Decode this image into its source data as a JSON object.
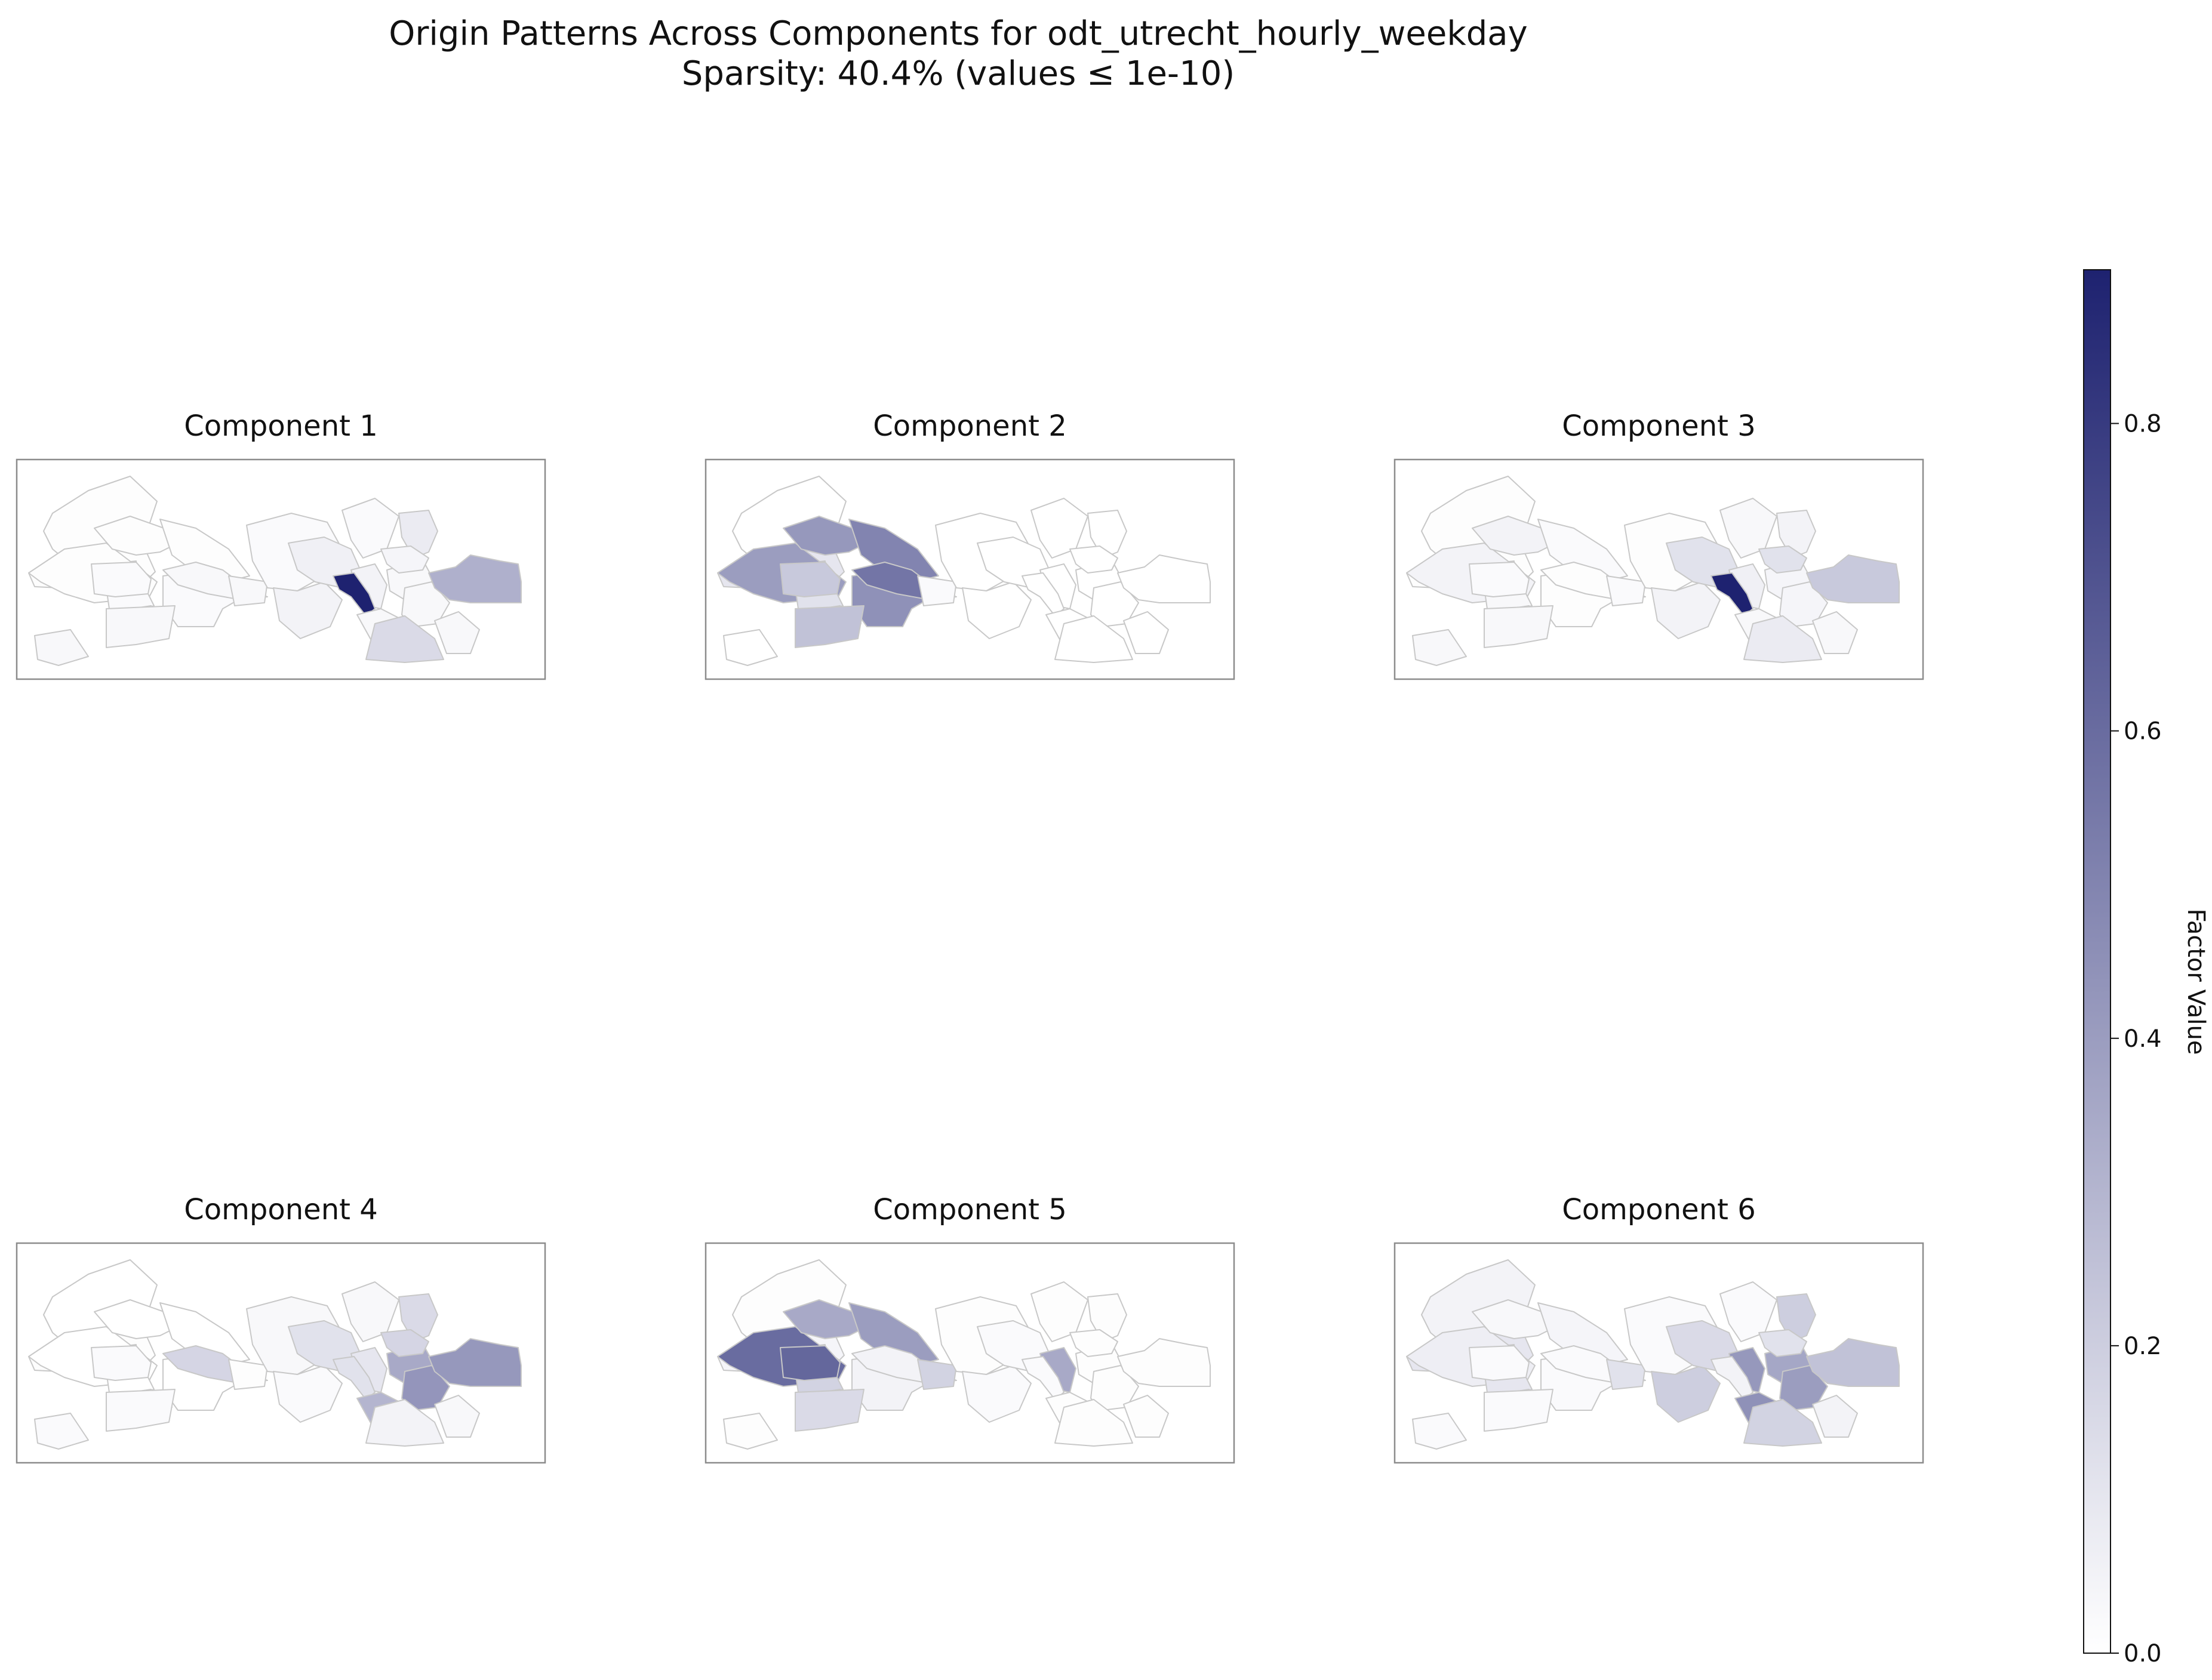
{
  "figure": {
    "title_line1": "Origin Patterns Across Components for odt_utrecht_hourly_weekday",
    "title_line2": "Sparsity: 40.4% (values ≤ 1e-10)"
  },
  "colormap": {
    "low": "#ffffff",
    "high": "#1e2270"
  },
  "colorbar": {
    "label": "Factor Value",
    "range": [
      0,
      0.9
    ],
    "ticks": [
      {
        "value": 0.0,
        "label": "0.0"
      },
      {
        "value": 0.2,
        "label": "0.2"
      },
      {
        "value": 0.4,
        "label": "0.4"
      },
      {
        "value": 0.6,
        "label": "0.6"
      },
      {
        "value": 0.8,
        "label": "0.8"
      }
    ]
  },
  "components": [
    {
      "title": "Component 1",
      "values": {
        "D01": 0.01,
        "D02": 0.01,
        "D03": 0.01,
        "D04": 0.01,
        "D05": 0.01,
        "D06": 0.01,
        "D07": 0.02,
        "D08": 0.02,
        "D09": 0.02,
        "D10": 0.02,
        "D11": 0.03,
        "D12": 0.03,
        "D13": 0.03,
        "D14": 0.02,
        "D15": 0.05,
        "D16": 0.06,
        "D17": 0.02,
        "D18": 0.05,
        "D19": 0.9,
        "D20": 0.03,
        "D21": 0.03,
        "D22": 0.08,
        "D23": 0.04,
        "D24": 0.03,
        "D25": 0.32,
        "D26": 0.15,
        "D27": 0.03,
        "D28": 0.03
      }
    },
    {
      "title": "Component 2",
      "values": {
        "D01": 0.0,
        "D02": 0.1,
        "D03": 0.03,
        "D04": 0.4,
        "D05": 0.42,
        "D06": 0.5,
        "D07": 0.12,
        "D08": 0.45,
        "D09": 0.0,
        "D10": 0.22,
        "D11": 0.25,
        "D12": 0.56,
        "D13": 0.02,
        "D14": 0.0,
        "D15": 0.0,
        "D16": 0.0,
        "D17": 0.0,
        "D18": 0.0,
        "D19": 0.0,
        "D20": 0.0,
        "D21": 0.0,
        "D22": 0.0,
        "D23": 0.0,
        "D24": 0.0,
        "D25": 0.0,
        "D26": 0.0,
        "D27": 0.0,
        "D28": 0.0
      }
    },
    {
      "title": "Component 3",
      "values": {
        "D01": 0.01,
        "D02": 0.01,
        "D03": 0.01,
        "D04": 0.05,
        "D05": 0.05,
        "D06": 0.02,
        "D07": 0.03,
        "D08": 0.01,
        "D09": 0.01,
        "D10": 0.02,
        "D11": 0.03,
        "D12": 0.01,
        "D13": 0.02,
        "D14": 0.01,
        "D15": 0.05,
        "D16": 0.12,
        "D17": 0.03,
        "D18": 0.06,
        "D19": 0.9,
        "D20": 0.04,
        "D21": 0.03,
        "D22": 0.05,
        "D23": 0.12,
        "D24": 0.04,
        "D25": 0.22,
        "D26": 0.08,
        "D27": 0.03,
        "D28": 0.03
      }
    },
    {
      "title": "Component 4",
      "values": {
        "D01": 0.0,
        "D02": 0.01,
        "D03": 0.0,
        "D04": 0.0,
        "D05": 0.0,
        "D06": 0.0,
        "D07": 0.0,
        "D08": 0.0,
        "D09": 0.02,
        "D10": 0.02,
        "D11": 0.02,
        "D12": 0.17,
        "D13": 0.01,
        "D14": 0.03,
        "D15": 0.02,
        "D16": 0.12,
        "D17": 0.03,
        "D18": 0.1,
        "D19": 0.12,
        "D20": 0.35,
        "D21": 0.3,
        "D22": 0.15,
        "D23": 0.17,
        "D24": 0.43,
        "D25": 0.42,
        "D26": 0.05,
        "D27": 0.03,
        "D28": 0.02
      }
    },
    {
      "title": "Component 5",
      "values": {
        "D01": 0.01,
        "D02": 0.04,
        "D03": 0.02,
        "D04": 0.6,
        "D05": 0.35,
        "D06": 0.4,
        "D07": 0.18,
        "D08": 0.05,
        "D09": 0.01,
        "D10": 0.62,
        "D11": 0.15,
        "D12": 0.05,
        "D13": 0.18,
        "D14": 0.01,
        "D15": 0.02,
        "D16": 0.02,
        "D17": 0.01,
        "D18": 0.35,
        "D19": 0.02,
        "D20": 0.01,
        "D21": 0.01,
        "D22": 0.01,
        "D23": 0.01,
        "D24": 0.01,
        "D25": 0.01,
        "D26": 0.01,
        "D27": 0.01,
        "D28": 0.01
      }
    },
    {
      "title": "Component 6",
      "values": {
        "D01": 0.05,
        "D02": 0.1,
        "D03": 0.02,
        "D04": 0.07,
        "D05": 0.03,
        "D06": 0.04,
        "D07": 0.1,
        "D08": 0.02,
        "D09": 0.02,
        "D10": 0.02,
        "D11": 0.02,
        "D12": 0.02,
        "D13": 0.12,
        "D14": 0.02,
        "D15": 0.2,
        "D16": 0.15,
        "D17": 0.02,
        "D18": 0.42,
        "D19": 0.05,
        "D20": 0.36,
        "D21": 0.45,
        "D22": 0.2,
        "D23": 0.12,
        "D24": 0.4,
        "D25": 0.25,
        "D26": 0.18,
        "D27": 0.05,
        "D28": 0.02
      }
    }
  ]
}
